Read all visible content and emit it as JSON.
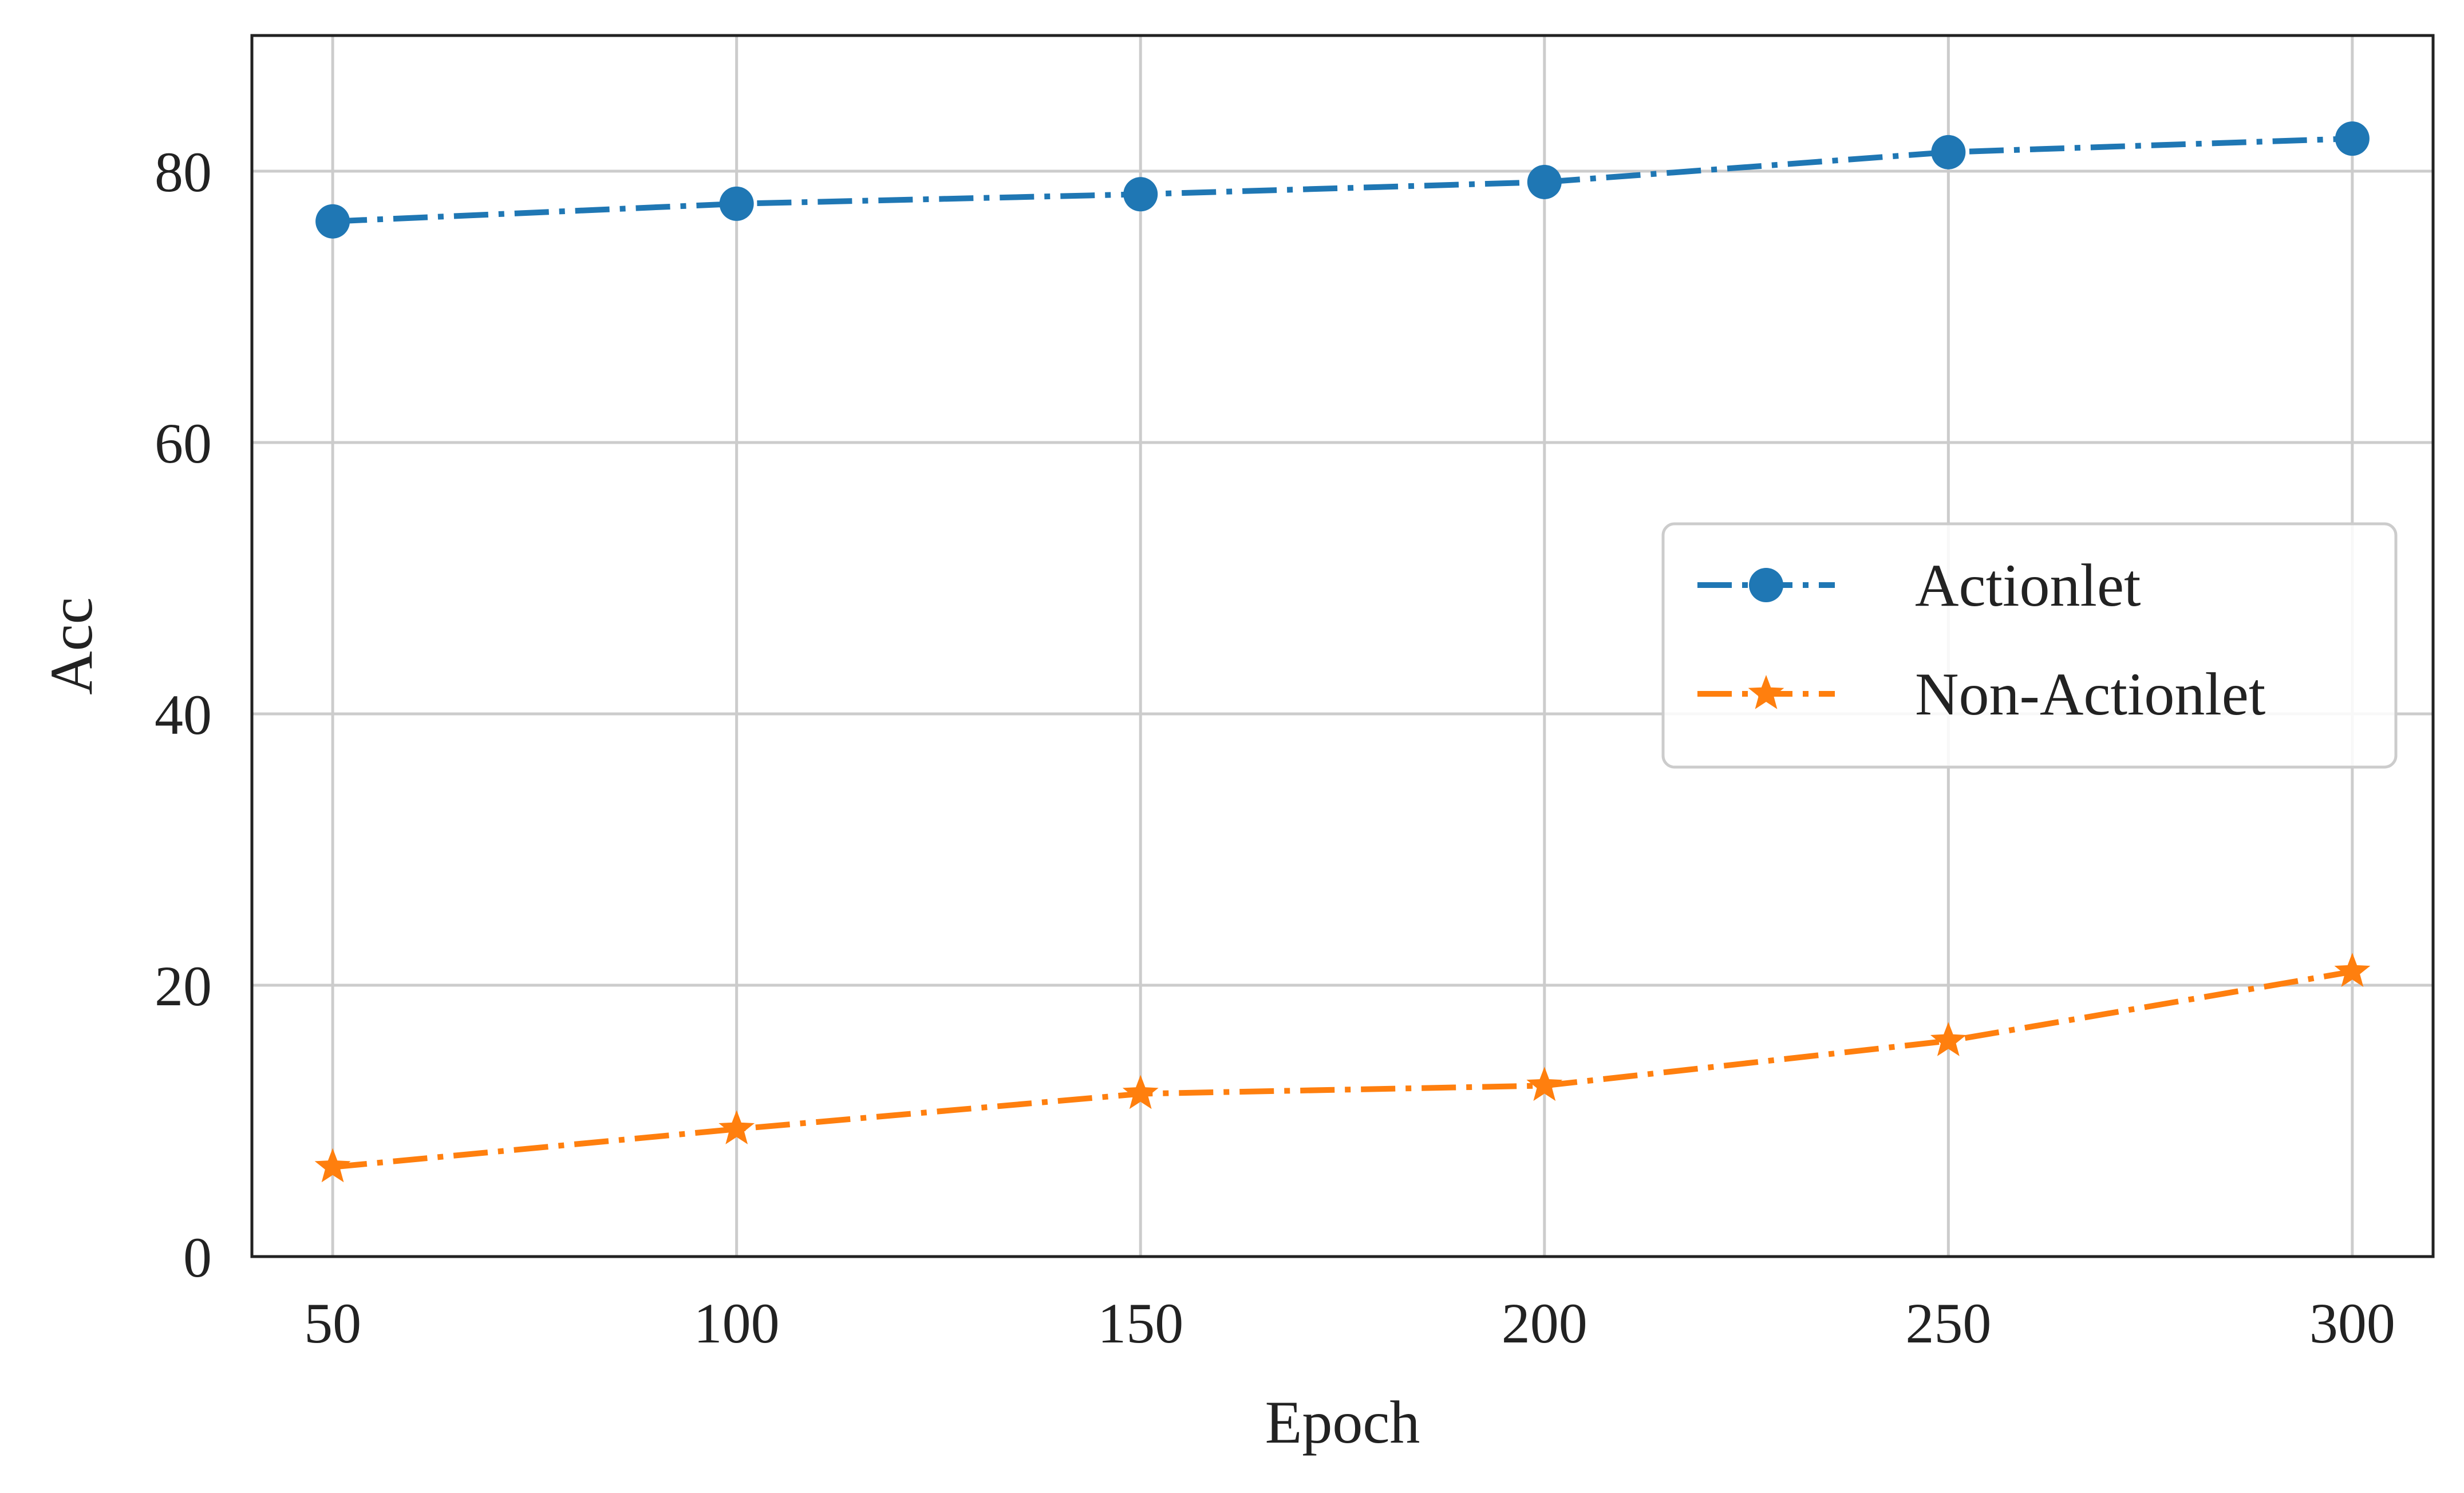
{
  "chart_data": {
    "type": "line",
    "title": "",
    "xlabel": "Epoch",
    "ylabel": "Acc",
    "x": [
      50,
      100,
      150,
      200,
      250,
      300
    ],
    "xticks": [
      50,
      100,
      150,
      200,
      250,
      300
    ],
    "yticks": [
      0,
      20,
      40,
      60,
      80
    ],
    "xlim": [
      40,
      310
    ],
    "ylim": [
      0,
      90
    ],
    "grid": true,
    "legend_position": "center-right",
    "series": [
      {
        "name": "Actionlet",
        "values": [
          76.3,
          77.6,
          78.3,
          79.2,
          81.4,
          82.4
        ],
        "color": "#1f77b4",
        "marker": "circle",
        "linestyle": "dash-dot"
      },
      {
        "name": "Non-Actionlet",
        "values": [
          6.6,
          9.4,
          12.0,
          12.6,
          15.9,
          21.0
        ],
        "color": "#ff7f0e",
        "marker": "star",
        "linestyle": "dash-dot"
      }
    ]
  }
}
